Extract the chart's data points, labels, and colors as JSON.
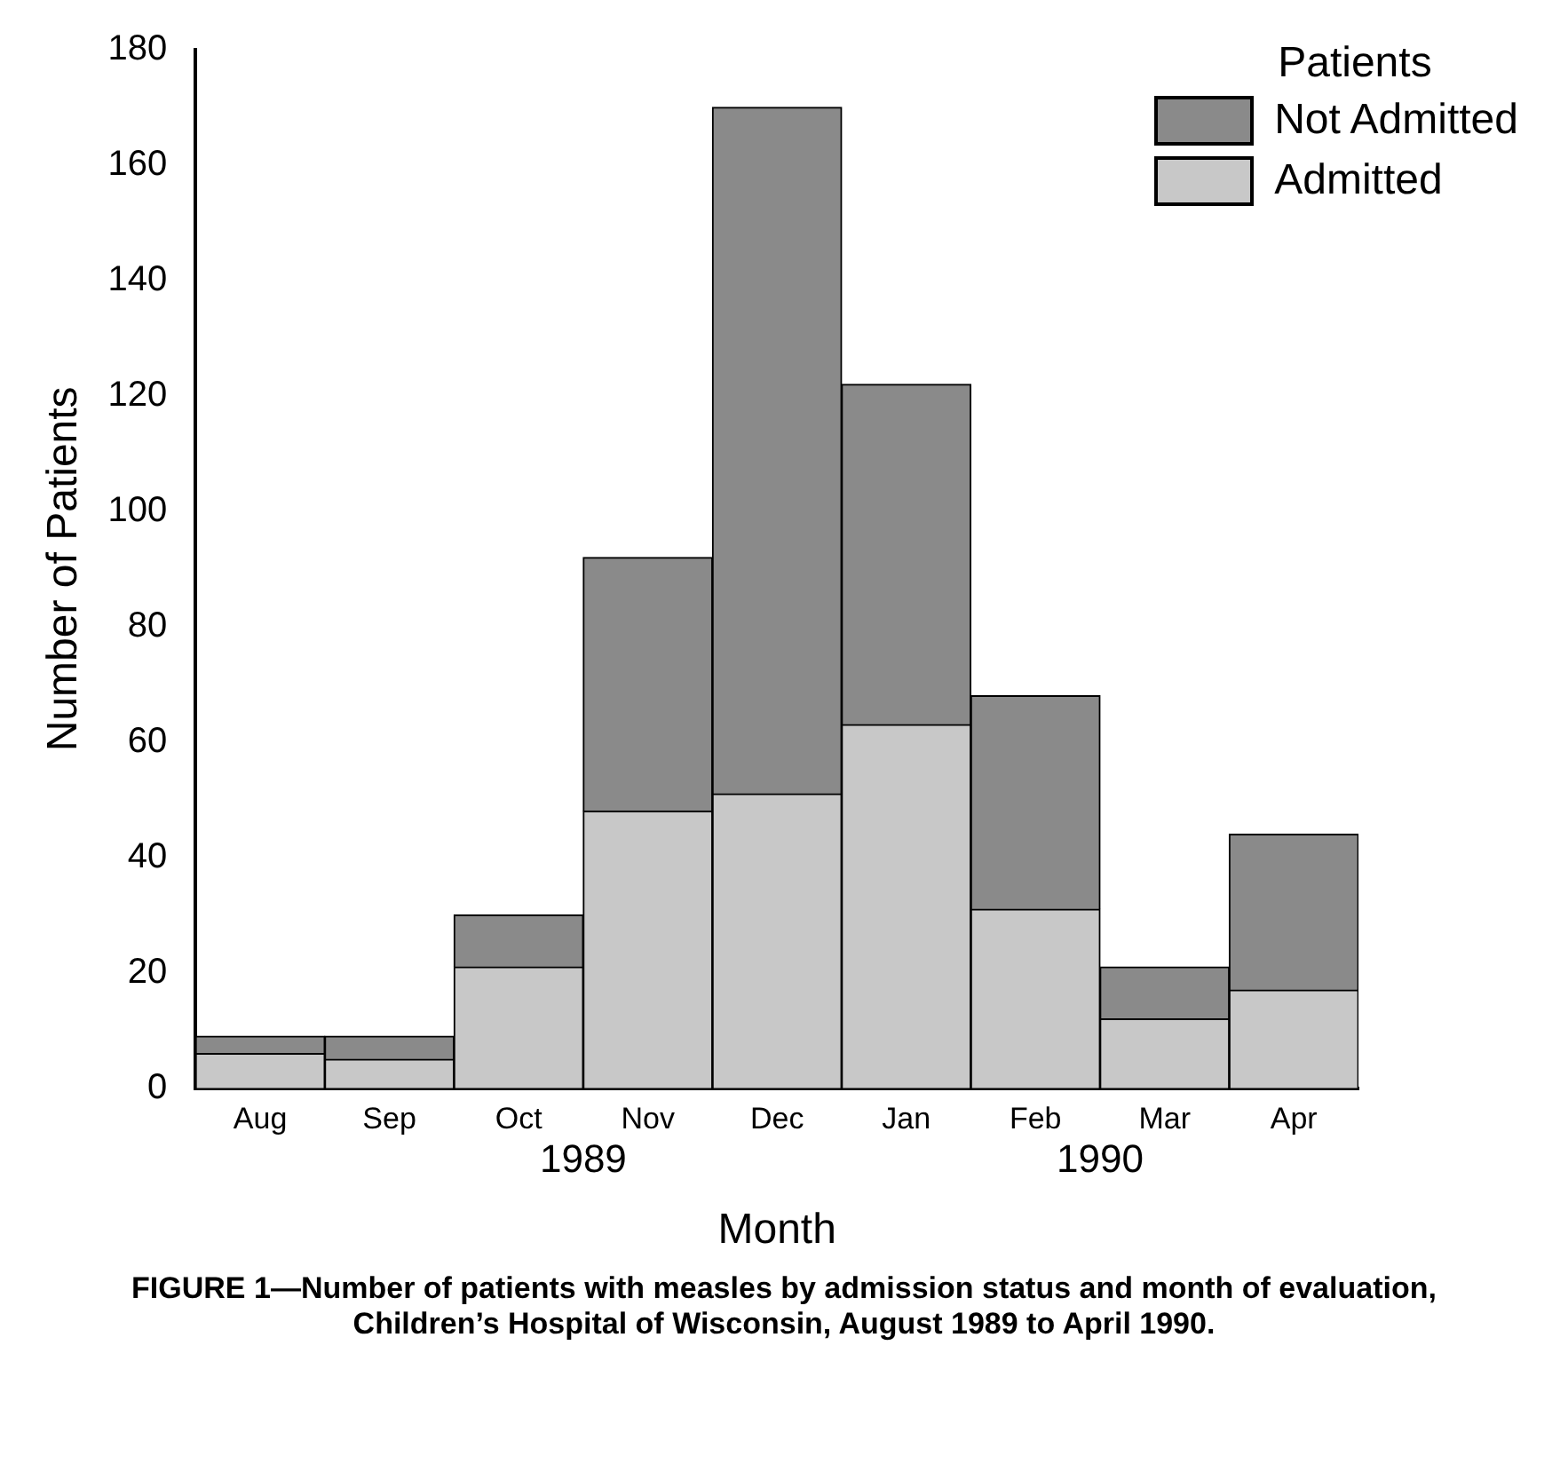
{
  "chart_data": {
    "type": "bar",
    "categories": [
      "Aug",
      "Sep",
      "Oct",
      "Nov",
      "Dec",
      "Jan",
      "Feb",
      "Mar",
      "Apr"
    ],
    "series": [
      {
        "name": "Admitted",
        "color": "#c8c8c8",
        "values": [
          6,
          5,
          21,
          48,
          51,
          63,
          31,
          12,
          17
        ]
      },
      {
        "name": "Not Admitted",
        "color": "#8a8a8a",
        "values": [
          3,
          4,
          9,
          44,
          119,
          59,
          37,
          9,
          27
        ]
      }
    ],
    "stacked": true,
    "ylim": [
      0,
      180
    ],
    "yticks": [
      0,
      20,
      40,
      60,
      80,
      100,
      120,
      140,
      160,
      180
    ],
    "grid": false,
    "legend": "top right",
    "legend_title": "Patients",
    "xlabel": "Month",
    "ylabel": "Number of Patients",
    "annotations": [
      "1989",
      "1990",
      "FIGURE 1—Number of patients with measles by admission status and month of evaluation, Children’s Hospital of Wisconsin, August 1989 to April 1990."
    ]
  }
}
